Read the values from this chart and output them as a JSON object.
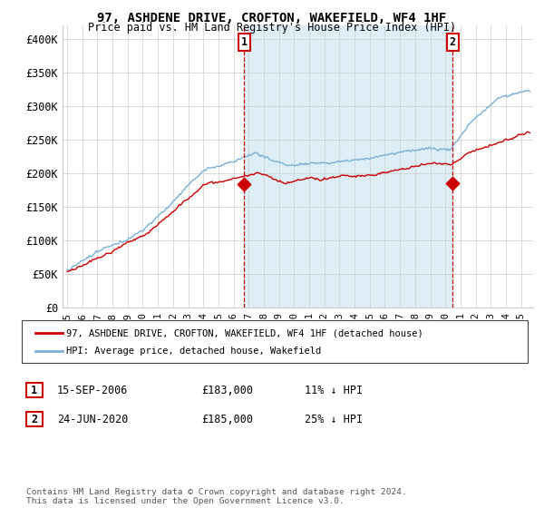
{
  "title": "97, ASHDENE DRIVE, CROFTON, WAKEFIELD, WF4 1HF",
  "subtitle": "Price paid vs. HM Land Registry's House Price Index (HPI)",
  "ylim": [
    0,
    420000
  ],
  "yticks": [
    0,
    50000,
    100000,
    150000,
    200000,
    250000,
    300000,
    350000,
    400000
  ],
  "ytick_labels": [
    "£0",
    "£50K",
    "£100K",
    "£150K",
    "£200K",
    "£250K",
    "£300K",
    "£350K",
    "£400K"
  ],
  "legend_line1": "97, ASHDENE DRIVE, CROFTON, WAKEFIELD, WF4 1HF (detached house)",
  "legend_line2": "HPI: Average price, detached house, Wakefield",
  "sale1_date": "15-SEP-2006",
  "sale1_price": "£183,000",
  "sale1_hpi": "11% ↓ HPI",
  "sale1_year": 2006.71,
  "sale1_price_val": 183000,
  "sale2_date": "24-JUN-2020",
  "sale2_price": "£185,000",
  "sale2_hpi": "25% ↓ HPI",
  "sale2_year": 2020.48,
  "sale2_price_val": 185000,
  "line_color_red": "#cc0000",
  "line_color_blue": "#7ab0d4",
  "fill_color_blue": "#ddeef7",
  "footer": "Contains HM Land Registry data © Crown copyright and database right 2024.\nThis data is licensed under the Open Government Licence v3.0.",
  "background_color": "#ffffff",
  "grid_color": "#cccccc"
}
